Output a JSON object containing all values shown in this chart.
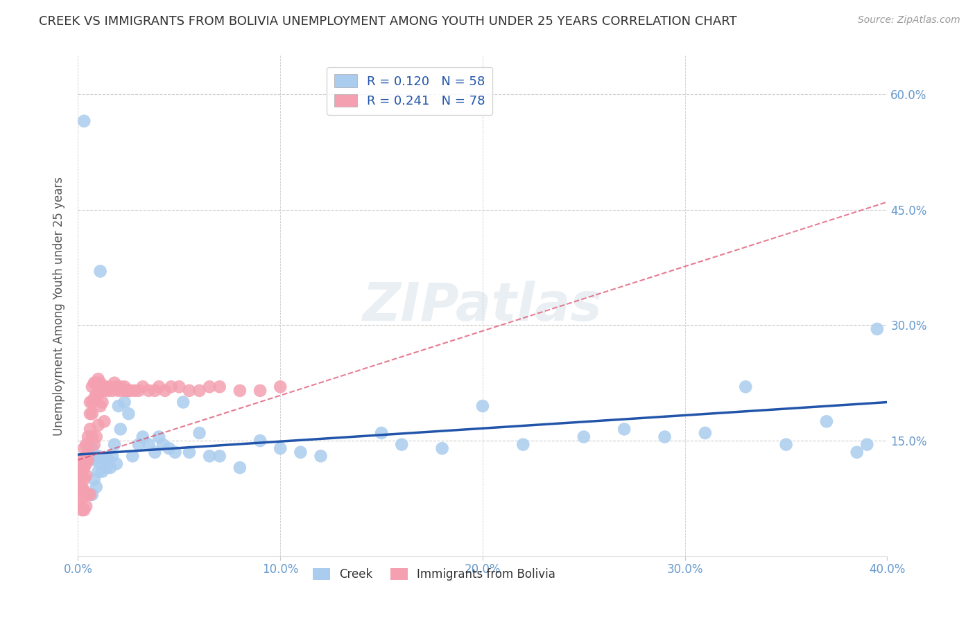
{
  "title": "CREEK VS IMMIGRANTS FROM BOLIVIA UNEMPLOYMENT AMONG YOUTH UNDER 25 YEARS CORRELATION CHART",
  "source": "Source: ZipAtlas.com",
  "ylabel": "Unemployment Among Youth under 25 years",
  "xlim": [
    0.0,
    0.4
  ],
  "ylim": [
    0.0,
    0.65
  ],
  "xtick_labels": [
    "0.0%",
    "10.0%",
    "20.0%",
    "30.0%",
    "40.0%"
  ],
  "xtick_values": [
    0.0,
    0.1,
    0.2,
    0.3,
    0.4
  ],
  "ytick_labels_right": [
    "15.0%",
    "30.0%",
    "45.0%",
    "60.0%"
  ],
  "ytick_values": [
    0.15,
    0.3,
    0.45,
    0.6
  ],
  "grid_color": "#cccccc",
  "background_color": "#ffffff",
  "creek_color": "#aaccee",
  "bolivia_color": "#f4a0b0",
  "creek_line_color": "#2255aa",
  "bolivia_line_color": "#dd4466",
  "creek_R": 0.12,
  "creek_N": 58,
  "bolivia_R": 0.241,
  "bolivia_N": 78,
  "watermark": "ZIPatlas",
  "creek_x": [
    0.003,
    0.005,
    0.006,
    0.007,
    0.007,
    0.008,
    0.008,
    0.009,
    0.01,
    0.01,
    0.011,
    0.011,
    0.012,
    0.013,
    0.014,
    0.015,
    0.016,
    0.017,
    0.018,
    0.019,
    0.02,
    0.021,
    0.023,
    0.025,
    0.027,
    0.03,
    0.032,
    0.035,
    0.038,
    0.04,
    0.042,
    0.045,
    0.048,
    0.052,
    0.055,
    0.06,
    0.065,
    0.07,
    0.08,
    0.09,
    0.1,
    0.11,
    0.12,
    0.15,
    0.16,
    0.18,
    0.2,
    0.22,
    0.25,
    0.27,
    0.29,
    0.31,
    0.33,
    0.35,
    0.37,
    0.385,
    0.39,
    0.395
  ],
  "creek_y": [
    0.565,
    0.125,
    0.13,
    0.08,
    0.14,
    0.1,
    0.125,
    0.09,
    0.11,
    0.13,
    0.37,
    0.12,
    0.11,
    0.125,
    0.115,
    0.125,
    0.115,
    0.13,
    0.145,
    0.12,
    0.195,
    0.165,
    0.2,
    0.185,
    0.13,
    0.145,
    0.155,
    0.145,
    0.135,
    0.155,
    0.145,
    0.14,
    0.135,
    0.2,
    0.135,
    0.16,
    0.13,
    0.13,
    0.115,
    0.15,
    0.14,
    0.135,
    0.13,
    0.16,
    0.145,
    0.14,
    0.195,
    0.145,
    0.155,
    0.165,
    0.155,
    0.16,
    0.22,
    0.145,
    0.175,
    0.135,
    0.145,
    0.295
  ],
  "bolivia_x": [
    0.001,
    0.001,
    0.001,
    0.001,
    0.001,
    0.002,
    0.002,
    0.002,
    0.002,
    0.002,
    0.002,
    0.003,
    0.003,
    0.003,
    0.003,
    0.003,
    0.003,
    0.004,
    0.004,
    0.004,
    0.004,
    0.004,
    0.005,
    0.005,
    0.005,
    0.005,
    0.006,
    0.006,
    0.006,
    0.006,
    0.007,
    0.007,
    0.007,
    0.007,
    0.008,
    0.008,
    0.008,
    0.009,
    0.009,
    0.009,
    0.01,
    0.01,
    0.01,
    0.011,
    0.011,
    0.012,
    0.012,
    0.013,
    0.013,
    0.014,
    0.015,
    0.016,
    0.017,
    0.018,
    0.019,
    0.02,
    0.021,
    0.022,
    0.023,
    0.024,
    0.025,
    0.026,
    0.028,
    0.03,
    0.032,
    0.035,
    0.038,
    0.04,
    0.043,
    0.046,
    0.05,
    0.055,
    0.06,
    0.065,
    0.07,
    0.08,
    0.09,
    0.1
  ],
  "bolivia_y": [
    0.115,
    0.105,
    0.09,
    0.08,
    0.065,
    0.125,
    0.115,
    0.105,
    0.09,
    0.075,
    0.06,
    0.14,
    0.125,
    0.115,
    0.1,
    0.085,
    0.06,
    0.145,
    0.13,
    0.12,
    0.105,
    0.065,
    0.155,
    0.14,
    0.125,
    0.08,
    0.2,
    0.185,
    0.165,
    0.08,
    0.22,
    0.2,
    0.185,
    0.155,
    0.225,
    0.205,
    0.145,
    0.225,
    0.21,
    0.155,
    0.23,
    0.21,
    0.17,
    0.225,
    0.195,
    0.22,
    0.2,
    0.215,
    0.175,
    0.22,
    0.215,
    0.22,
    0.215,
    0.225,
    0.22,
    0.215,
    0.22,
    0.215,
    0.22,
    0.215,
    0.215,
    0.215,
    0.215,
    0.215,
    0.22,
    0.215,
    0.215,
    0.22,
    0.215,
    0.22,
    0.22,
    0.215,
    0.215,
    0.22,
    0.22,
    0.215,
    0.215,
    0.22
  ]
}
